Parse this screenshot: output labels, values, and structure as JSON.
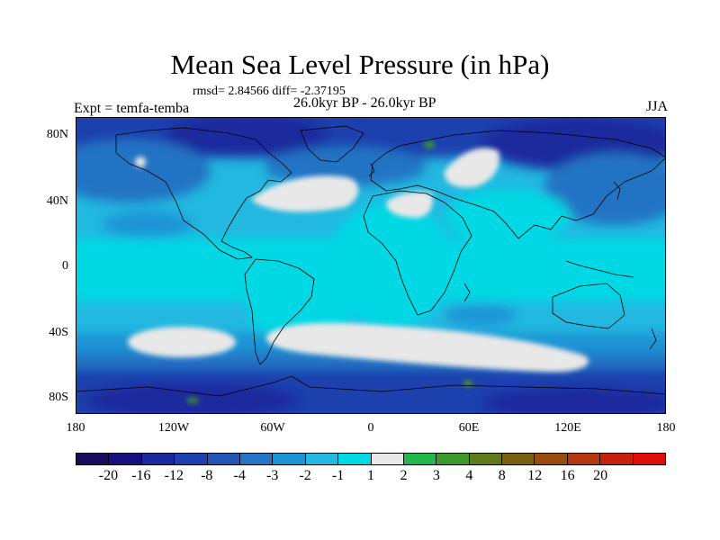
{
  "header": {
    "title": "Mean Sea Level Pressure (in hPa)",
    "stats": "rmsd= 2.84566 diff= -2.37195",
    "experiment": "Expt = temfa-temba",
    "period": "26.0kyr BP - 26.0kyr BP",
    "season": "JJA"
  },
  "axes": {
    "lat_labels": [
      "80N",
      "40N",
      "0",
      "40S",
      "80S"
    ],
    "lon_labels": [
      "180",
      "120W",
      "60W",
      "0",
      "60E",
      "120E",
      "180"
    ]
  },
  "colorbar": {
    "labels": [
      "-20",
      "-16",
      "-12",
      "-8",
      "-4",
      "-3",
      "-2",
      "-1",
      "1",
      "2",
      "3",
      "4",
      "8",
      "12",
      "16",
      "20"
    ],
    "colors": [
      "#1a0a5e",
      "#150f80",
      "#1a2a9e",
      "#1e3fae",
      "#2255b6",
      "#2473c4",
      "#1b94d6",
      "#22b8e0",
      "#00d8e4",
      "#e8e8e8",
      "#22b84a",
      "#3c9a2a",
      "#5e7a1a",
      "#7a6010",
      "#984c10",
      "#b63610",
      "#c8200e",
      "#e00c0a"
    ],
    "map_colors": {
      "ocean_deep": "#1e3fae",
      "ocean_mid": "#2473c4",
      "ocean_light": "#1b94d6",
      "cyan": "#22b8e0",
      "cyan_light": "#00d8e4",
      "neutral": "#e8e8e8",
      "green": "#3c9a2a"
    }
  }
}
